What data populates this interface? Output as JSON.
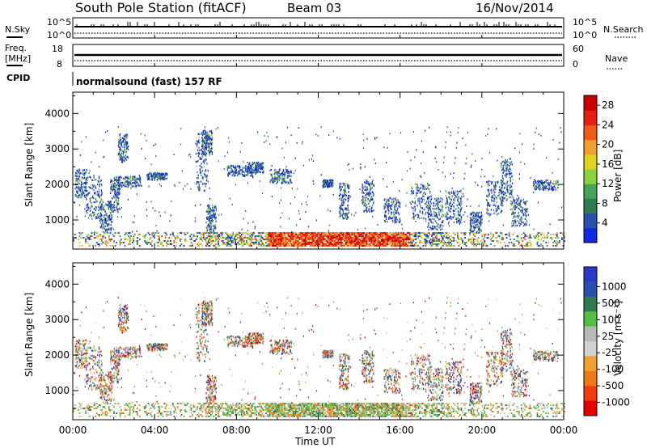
{
  "header": {
    "station": "South Pole Station (fitACF)",
    "beam": "Beam 03",
    "date": "16/Nov/2014"
  },
  "sky_panel": {
    "left_label": "N.Sky",
    "right_label": "N.Search",
    "left_ticks": [
      "10^5",
      "10^0"
    ],
    "right_ticks": [
      "10^5",
      "10^0"
    ]
  },
  "freq_panel": {
    "left_label_1": "Freq.",
    "left_label_2": "[MHz]",
    "right_label": "Nave",
    "left_ticks": [
      "18",
      "8"
    ],
    "right_ticks": [
      "60",
      "0"
    ]
  },
  "cpid": {
    "label": "CPID",
    "program": "normalsound (fast) 157 RF"
  },
  "chart_data": [
    {
      "type": "heatmap",
      "name": "power",
      "xlabel": "Time UT",
      "ylabel": "Slant Range [km]",
      "x_ticks": [
        "00:00",
        "04:00",
        "08:00",
        "12:00",
        "16:00",
        "20:00",
        "00:00"
      ],
      "x_range_hours": [
        0,
        24
      ],
      "y_ticks": [
        1000,
        2000,
        3000,
        4000
      ],
      "ylim": [
        180,
        4600
      ],
      "colorbar": {
        "label": "Power [dB]",
        "ticks": [
          "4",
          "8",
          "12",
          "16",
          "20",
          "24",
          "28"
        ],
        "range": [
          0,
          30
        ],
        "colors": [
          "#1028e0",
          "#2a4fb0",
          "#2f7a4f",
          "#46a35a",
          "#8cd23c",
          "#e0d21e",
          "#f0a030",
          "#f05a14",
          "#e61e10",
          "#c80000"
        ]
      }
    },
    {
      "type": "heatmap",
      "name": "velocity",
      "xlabel": "Time UT",
      "ylabel": "Slant Range [km]",
      "x_ticks": [
        "00:00",
        "04:00",
        "08:00",
        "12:00",
        "16:00",
        "20:00",
        "00:00"
      ],
      "x_range_hours": [
        0,
        24
      ],
      "y_ticks": [
        1000,
        2000,
        3000,
        4000
      ],
      "ylim": [
        180,
        4600
      ],
      "colorbar": {
        "label": "Velocity [m s⁻¹]",
        "ticks": [
          "1000",
          "500",
          "100",
          "25",
          "-25",
          "-100",
          "-500",
          "-1000"
        ],
        "colors": [
          "#2838c8",
          "#2a4fb0",
          "#2f7a4f",
          "#52c040",
          "#b9b9b9",
          "#d0d0d0",
          "#f0a030",
          "#f07814",
          "#f03c10",
          "#e60000"
        ]
      }
    }
  ]
}
